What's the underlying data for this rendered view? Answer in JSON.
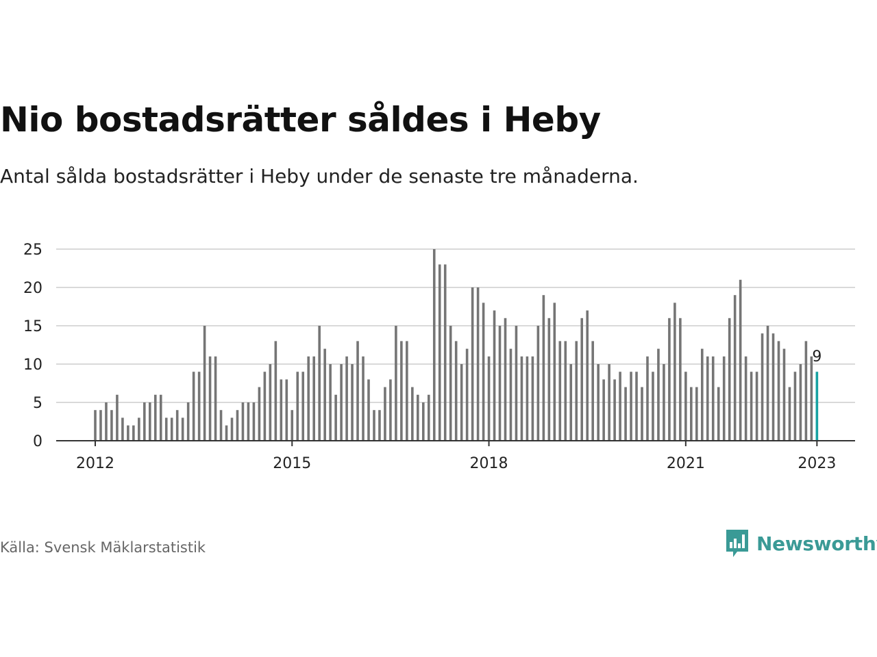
{
  "title": "Nio bostadsrätter såldes i Heby",
  "subtitle": "Antal sålda bostadsrätter i Heby under de senaste tre månaderna.",
  "source": "Källa: Svensk Mäklarstatistik",
  "logo": {
    "text": "Newsworthy",
    "icon": "newsworthy-bar-chart-icon",
    "color": "#3a9a96"
  },
  "colors": {
    "bar": "#757575",
    "highlight": "#17a2a2",
    "grid": "#d9d9d9",
    "baseline": "#333333"
  },
  "chart_data": {
    "type": "bar",
    "ylim": [
      0,
      25
    ],
    "yticks": [
      "0",
      "5",
      "10",
      "15",
      "20",
      "25"
    ],
    "xticks": [
      {
        "label": "2012",
        "index": 0
      },
      {
        "label": "2015",
        "index": 36
      },
      {
        "label": "2018",
        "index": 72
      },
      {
        "label": "2021",
        "index": 108
      },
      {
        "label": "2023",
        "index": 132
      }
    ],
    "start": "2012-01",
    "values": [
      4,
      4,
      5,
      4,
      6,
      3,
      2,
      2,
      3,
      5,
      5,
      6,
      6,
      3,
      3,
      4,
      3,
      5,
      9,
      9,
      15,
      11,
      11,
      4,
      2,
      3,
      4,
      5,
      5,
      5,
      7,
      9,
      10,
      13,
      8,
      8,
      4,
      9,
      9,
      11,
      11,
      15,
      12,
      10,
      6,
      10,
      11,
      10,
      13,
      11,
      8,
      4,
      4,
      7,
      8,
      15,
      13,
      13,
      7,
      6,
      5,
      6,
      25,
      23,
      23,
      15,
      13,
      10,
      12,
      20,
      20,
      18,
      11,
      17,
      15,
      16,
      12,
      15,
      11,
      11,
      11,
      15,
      19,
      16,
      18,
      13,
      13,
      10,
      13,
      16,
      17,
      13,
      10,
      8,
      10,
      8,
      9,
      7,
      9,
      9,
      7,
      11,
      9,
      12,
      10,
      16,
      18,
      16,
      9,
      7,
      7,
      12,
      11,
      11,
      7,
      11,
      16,
      19,
      21,
      11,
      9,
      9,
      14,
      15,
      14,
      13,
      12,
      7,
      9,
      10,
      13,
      11,
      9
    ],
    "highlight_last": true,
    "last_label": "9"
  }
}
